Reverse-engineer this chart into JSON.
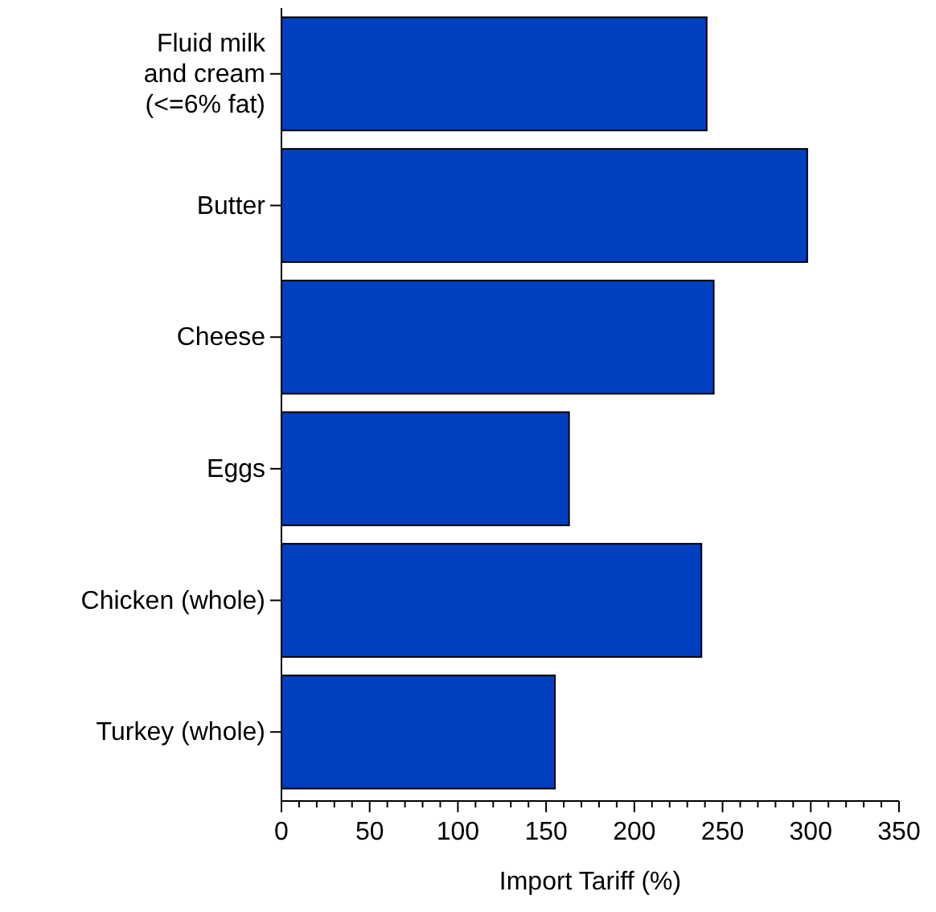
{
  "chart_data": {
    "type": "bar",
    "orientation": "horizontal",
    "xlabel": "Import Tariff (%)",
    "categories": [
      "Fluid milk\nand cream\n(<=6% fat)",
      "Butter",
      "Cheese",
      "Eggs",
      "Chicken (whole)",
      "Turkey (whole)"
    ],
    "values": [
      241,
      298,
      245,
      163,
      238,
      155
    ],
    "color": "#0040c0",
    "xlim": [
      0,
      350
    ],
    "xticks": [
      0,
      {
        "value": 10,
        "label": null
      },
      {
        "value": 20,
        "label": null
      },
      {
        "value": 30,
        "label": null
      },
      {
        "value": 40,
        "label": null
      },
      50,
      {
        "value": 60,
        "label": null
      },
      {
        "value": 70,
        "label": null
      },
      {
        "value": 80,
        "label": null
      },
      {
        "value": 90,
        "label": null
      },
      100,
      {
        "value": 110,
        "label": null
      },
      {
        "value": 120,
        "label": null
      },
      {
        "value": 130,
        "label": null
      },
      {
        "value": 140,
        "label": null
      },
      150,
      {
        "value": 160,
        "label": null
      },
      {
        "value": 170,
        "label": null
      },
      {
        "value": 180,
        "label": null
      },
      {
        "value": 190,
        "label": null
      },
      200,
      {
        "value": 210,
        "label": null
      },
      {
        "value": 220,
        "label": null
      },
      {
        "value": 230,
        "label": null
      },
      {
        "value": 240,
        "label": null
      },
      250,
      {
        "value": 260,
        "label": null
      },
      {
        "value": 270,
        "label": null
      },
      {
        "value": 280,
        "label": null
      },
      {
        "value": 290,
        "label": null
      },
      300,
      {
        "value": 310,
        "label": null
      },
      {
        "value": 320,
        "label": null
      },
      {
        "value": 330,
        "label": null
      },
      {
        "value": 340,
        "label": null
      },
      350
    ],
    "grid": false
  }
}
